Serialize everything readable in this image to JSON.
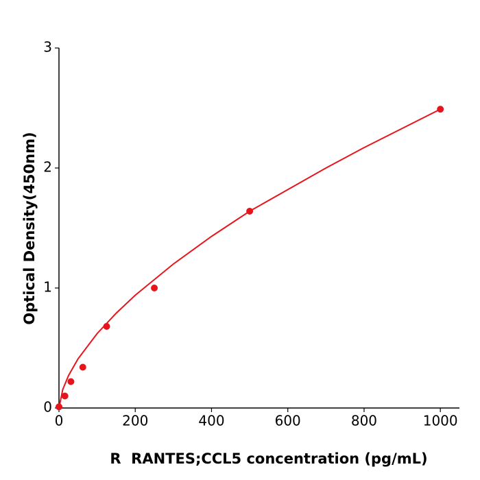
{
  "chart_data": {
    "type": "scatter",
    "x_label": "R  RANTES;CCL5 concentration (pg/mL)",
    "y_label": "Optical Density(450nm)",
    "x": [
      0,
      15.6,
      31.25,
      62.5,
      125,
      250,
      500,
      1000
    ],
    "series": [
      {
        "color": "#e8141b",
        "values": [
          0.01,
          0.1,
          0.22,
          0.34,
          0.68,
          1.0,
          1.64,
          2.49
        ]
      }
    ],
    "fit": {
      "color": "#e8141b",
      "x": [
        0,
        10,
        25,
        50,
        100,
        150,
        200,
        300,
        400,
        500,
        600,
        700,
        800,
        900,
        1000
      ],
      "y": [
        0,
        0.155,
        0.27,
        0.41,
        0.62,
        0.79,
        0.94,
        1.2,
        1.43,
        1.64,
        1.82,
        2.0,
        2.17,
        2.33,
        2.49
      ]
    },
    "xlim": [
      0,
      1050
    ],
    "ylim": [
      0,
      3
    ],
    "xticks": [
      0,
      200,
      400,
      600,
      800,
      1000
    ],
    "yticks": [
      0,
      1,
      2,
      3
    ]
  }
}
